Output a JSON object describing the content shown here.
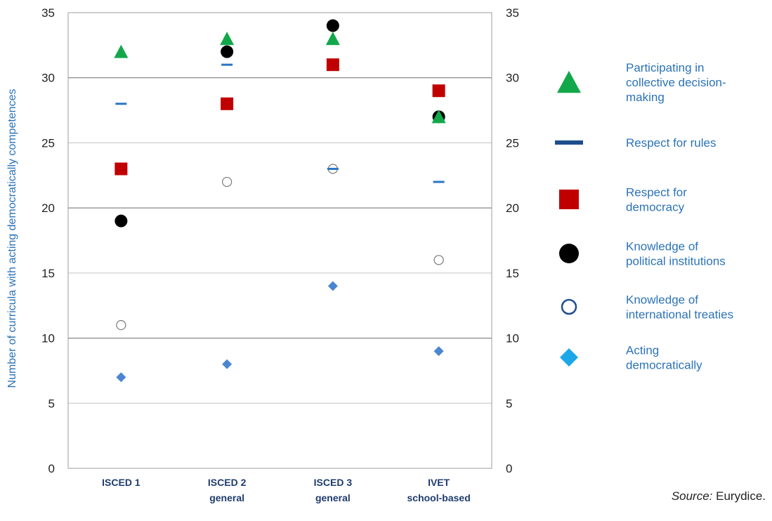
{
  "chart_data": {
    "type": "scatter",
    "ylabel": "Number of  curricula with acting democratically competences",
    "ylim": [
      0,
      35
    ],
    "yticks": [
      0,
      5,
      10,
      15,
      20,
      25,
      30,
      35
    ],
    "grid": true,
    "legend_position": "right",
    "categories": [
      [
        "ISCED 1"
      ],
      [
        "ISCED 2",
        "general"
      ],
      [
        "ISCED 3",
        "general"
      ],
      [
        "IVET",
        "school-based"
      ]
    ],
    "series": [
      {
        "name": "Participating in collective decision-making",
        "legend_lines": [
          "Participating in",
          "collective decision-",
          "making"
        ],
        "marker": "triangle",
        "color": "#12a84a",
        "values": [
          32,
          33,
          33,
          27
        ]
      },
      {
        "name": "Respect for rules",
        "legend_lines": [
          "Respect for rules"
        ],
        "marker": "dash",
        "color": "#2e75c4",
        "values": [
          28,
          31,
          23,
          22
        ]
      },
      {
        "name": "Respect for democracy",
        "legend_lines": [
          "Respect for",
          "democracy"
        ],
        "marker": "square",
        "color": "#c00000",
        "values": [
          23,
          28,
          31,
          29
        ]
      },
      {
        "name": "Knowledge of political institutions",
        "legend_lines": [
          "Knowledge of",
          "political institutions"
        ],
        "marker": "circle-filled",
        "color": "#000000",
        "values": [
          19,
          32,
          34,
          27
        ]
      },
      {
        "name": "Knowledge of international treaties",
        "legend_lines": [
          "Knowledge of",
          "international treaties"
        ],
        "marker": "circle-open",
        "color": "#7a7a7a",
        "values": [
          11,
          22,
          23,
          16
        ]
      },
      {
        "name": "Acting democratically",
        "legend_lines": [
          "Acting",
          "democratically"
        ],
        "marker": "diamond",
        "color": "#4a86d0",
        "values": [
          7,
          8,
          14,
          9
        ]
      }
    ],
    "legend_colors": {
      "triangle": "#12a84a",
      "dash": "#1f4e8c",
      "square": "#c00000",
      "circle-filled": "#000000",
      "circle-open": "#1f4e8c",
      "diamond": "#1ba7e8"
    }
  },
  "source": {
    "label": "Source:",
    "text": " Eurydice."
  }
}
